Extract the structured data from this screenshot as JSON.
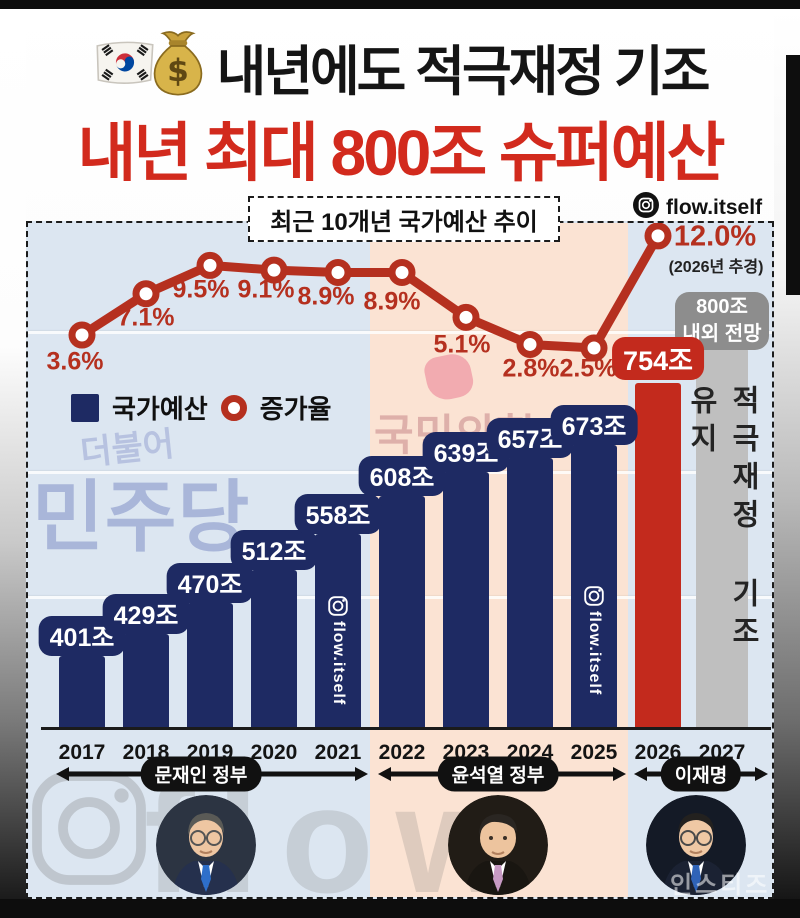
{
  "page": {
    "top_title": "내년에도 적극재정 기조",
    "headline": "내년 최대 800조 슈퍼예산",
    "instagram_handle": "flow.itself",
    "site_watermark": "인스티즈",
    "flow_watermark": "flow"
  },
  "chart": {
    "box_title": "최근 10개년 국가예산 추이",
    "legend_budget": "국가예산",
    "legend_growth": "증가율",
    "forecast_badge_line1": "800조",
    "forecast_badge_line2": "내외 전망",
    "forecast_bar_text": "적극재정 기조 유지",
    "growth_annotation": "(2026년 추경)",
    "watermark_minjoo_top": "더불어",
    "watermark_minjoo": "민주당",
    "watermark_ppp": "국민의힘",
    "bar_watermark": "flow.itself"
  },
  "chart_data": {
    "type": "bar",
    "subtype": "combo bar + line",
    "title": "최근 10개년 국가예산 추이",
    "categories": [
      "2017",
      "2018",
      "2019",
      "2020",
      "2021",
      "2022",
      "2023",
      "2024",
      "2025",
      "2026",
      "2027"
    ],
    "series": [
      {
        "name": "국가예산",
        "type": "bar",
        "unit": "조",
        "values": [
          401,
          429,
          470,
          512,
          558,
          608,
          639,
          657,
          673,
          754,
          null
        ],
        "labels": [
          "401조",
          "429조",
          "470조",
          "512조",
          "558조",
          "608조",
          "639조",
          "657조",
          "673조",
          "754조",
          ""
        ],
        "highlight_index": 9,
        "forecast_2027": {
          "badge": "800조 내외 전망",
          "bar_text": "적극재정 기조 유지",
          "approx_value": 800
        }
      },
      {
        "name": "증가율",
        "type": "line",
        "unit": "%",
        "values": [
          3.6,
          7.1,
          9.5,
          9.1,
          8.9,
          8.9,
          5.1,
          2.8,
          2.5,
          12.0,
          null
        ],
        "labels": [
          "3.6%",
          "7.1%",
          "9.5%",
          "9.1%",
          "8.9%",
          "8.9%",
          "5.1%",
          "2.8%",
          "2.5%",
          "12.0%",
          ""
        ],
        "annotation_2026": "(2026년 추경)"
      }
    ],
    "eras": [
      {
        "label": "문재인 정부",
        "start": "2017",
        "end": "2021"
      },
      {
        "label": "윤석열 정부",
        "start": "2022",
        "end": "2025"
      },
      {
        "label": "이재명",
        "start": "2026",
        "end": "2027"
      }
    ],
    "legend_position": "upper-left",
    "grid": "faint horizontal stripes",
    "background_sections": [
      {
        "years": "2017-2021",
        "color": "#dce6f1"
      },
      {
        "years": "2022-2025",
        "color": "#fbe3d3"
      },
      {
        "years": "2026-2027",
        "color": "#dce6f1"
      }
    ]
  },
  "colors": {
    "navy": "#1e2a63",
    "bar_red": "#c32a1d",
    "line_red": "#b5301f",
    "headline_red": "#d22a1d",
    "badge_gray": "#8d8d8d",
    "forecast_bar_gray": "#bfbfbf",
    "bg_blue": "#dce6f1",
    "bg_peach": "#fbe3d3"
  }
}
